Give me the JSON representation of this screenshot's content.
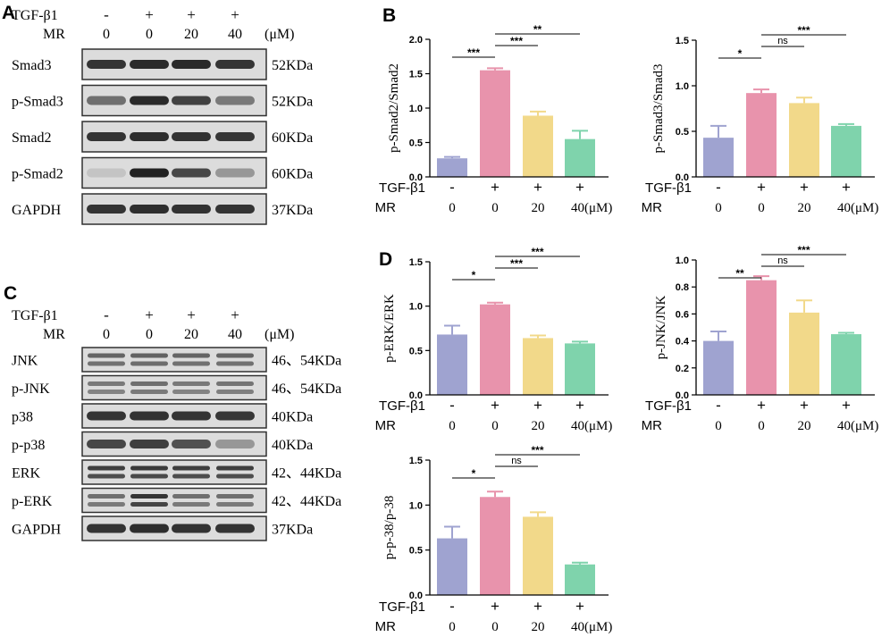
{
  "colors": {
    "groups": [
      "#9fa3d0",
      "#e893ac",
      "#f2d98a",
      "#7fd3ac"
    ],
    "blot_dark": "#161616",
    "blot_bg": "#dcdcdc",
    "frame": "#303030"
  },
  "panel_labels": {
    "a": "A",
    "b": "B",
    "c": "C",
    "d": "D"
  },
  "blot_a": {
    "header": {
      "row1_label": "TGF-β1",
      "row1_values": [
        "-",
        "+",
        "+",
        "+"
      ],
      "row2_label": "MR",
      "row2_values": [
        "0",
        "0",
        "20",
        "40"
      ],
      "unit": "(μM)"
    },
    "rows": [
      {
        "name": "Smad3",
        "mw": "52KDa"
      },
      {
        "name": "p-Smad3",
        "mw": "52KDa"
      },
      {
        "name": "Smad2",
        "mw": "60KDa"
      },
      {
        "name": "p-Smad2",
        "mw": "60KDa"
      },
      {
        "name": "GAPDH",
        "mw": "37KDa"
      }
    ]
  },
  "blot_c": {
    "header": {
      "row1_label": "TGF-β1",
      "row1_values": [
        "-",
        "+",
        "+",
        "+"
      ],
      "row2_label": "MR",
      "row2_values": [
        "0",
        "0",
        "20",
        "40"
      ],
      "unit": "(μM)"
    },
    "rows": [
      {
        "name": "JNK",
        "mw": "46、54KDa"
      },
      {
        "name": "p-JNK",
        "mw": "46、54KDa"
      },
      {
        "name": "p38",
        "mw": "40KDa"
      },
      {
        "name": "p-p38",
        "mw": "40KDa"
      },
      {
        "name": "ERK",
        "mw": "42、44KDa"
      },
      {
        "name": "p-ERK",
        "mw": "42、44KDa"
      },
      {
        "name": "GAPDH",
        "mw": "37KDa"
      }
    ]
  },
  "treatment": {
    "row1_label": "TGF-β1",
    "row1_values": [
      "-",
      "+",
      "+",
      "+"
    ],
    "row2_label": "MR",
    "row2_values": [
      "0",
      "0",
      "20",
      "40(μM)"
    ]
  },
  "chart_data": [
    {
      "type": "bar",
      "ylabel": "p-Smad2/Smad2",
      "ylim": [
        0,
        2.0
      ],
      "yticks": [
        0.0,
        0.5,
        1.0,
        1.5,
        2.0
      ],
      "tick_labels": [
        "0.0",
        "0.5",
        "1.0",
        "1.5",
        "2.0"
      ],
      "values": [
        0.27,
        1.55,
        0.89,
        0.55
      ],
      "errors": [
        0.02,
        0.03,
        0.06,
        0.12
      ],
      "sig": [
        {
          "from": 0,
          "to": 1,
          "label": "***"
        },
        {
          "from": 1,
          "to": 2,
          "label": "***"
        },
        {
          "from": 1,
          "to": 3,
          "label": "**"
        }
      ]
    },
    {
      "type": "bar",
      "ylabel": "p-Smad3/Smad3",
      "ylim": [
        0,
        1.5
      ],
      "yticks": [
        0.0,
        0.5,
        1.0,
        1.5
      ],
      "tick_labels": [
        "0.0",
        "0.5",
        "1.0",
        "1.5"
      ],
      "values": [
        0.43,
        0.92,
        0.81,
        0.56
      ],
      "errors": [
        0.13,
        0.04,
        0.06,
        0.02
      ],
      "sig": [
        {
          "from": 0,
          "to": 1,
          "label": "*"
        },
        {
          "from": 1,
          "to": 2,
          "label": "ns"
        },
        {
          "from": 1,
          "to": 3,
          "label": "***"
        }
      ]
    },
    {
      "type": "bar",
      "ylabel": "p-ERK/ERK",
      "ylim": [
        0,
        1.5
      ],
      "yticks": [
        0.0,
        0.5,
        1.0,
        1.5
      ],
      "tick_labels": [
        "0.0",
        "0.5",
        "1.0",
        "1.5"
      ],
      "values": [
        0.68,
        1.02,
        0.64,
        0.58
      ],
      "errors": [
        0.1,
        0.02,
        0.03,
        0.02
      ],
      "sig": [
        {
          "from": 0,
          "to": 1,
          "label": "*"
        },
        {
          "from": 1,
          "to": 2,
          "label": "***"
        },
        {
          "from": 1,
          "to": 3,
          "label": "***"
        }
      ]
    },
    {
      "type": "bar",
      "ylabel": "p-JNK/JNK",
      "ylim": [
        0,
        1.0
      ],
      "yticks": [
        0.0,
        0.2,
        0.4,
        0.6,
        0.8,
        1.0
      ],
      "tick_labels": [
        "0.0",
        "0.2",
        "0.4",
        "0.6",
        "0.8",
        "1.0"
      ],
      "values": [
        0.4,
        0.85,
        0.61,
        0.45
      ],
      "errors": [
        0.07,
        0.03,
        0.09,
        0.01
      ],
      "sig": [
        {
          "from": 0,
          "to": 1,
          "label": "**"
        },
        {
          "from": 1,
          "to": 2,
          "label": "ns"
        },
        {
          "from": 1,
          "to": 3,
          "label": "***"
        }
      ]
    },
    {
      "type": "bar",
      "ylabel": "p-p-38/p-38",
      "ylim": [
        0,
        1.5
      ],
      "yticks": [
        0.0,
        0.5,
        1.0,
        1.5
      ],
      "tick_labels": [
        "0.0",
        "0.5",
        "1.0",
        "1.5"
      ],
      "values": [
        0.63,
        1.09,
        0.87,
        0.34
      ],
      "errors": [
        0.13,
        0.06,
        0.05,
        0.02
      ],
      "sig": [
        {
          "from": 0,
          "to": 1,
          "label": "*"
        },
        {
          "from": 1,
          "to": 2,
          "label": "ns"
        },
        {
          "from": 1,
          "to": 3,
          "label": "***"
        }
      ]
    }
  ]
}
